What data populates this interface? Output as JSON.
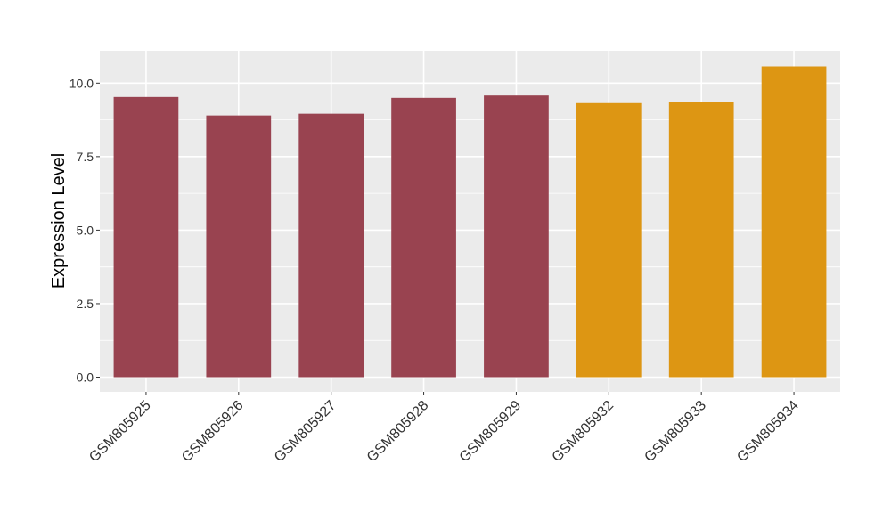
{
  "chart_data": {
    "type": "bar",
    "categories": [
      "GSM805925",
      "GSM805926",
      "GSM805927",
      "GSM805928",
      "GSM805929",
      "GSM805932",
      "GSM805933",
      "GSM805934"
    ],
    "values": [
      9.53,
      8.9,
      8.96,
      9.5,
      9.58,
      9.32,
      9.36,
      10.57
    ],
    "bar_colors": [
      "#994350",
      "#994350",
      "#994350",
      "#994350",
      "#994350",
      "#DD9613",
      "#DD9613",
      "#DD9613"
    ],
    "xlabel": "",
    "ylabel": "Expression Level",
    "ylim": [
      -0.5,
      11.1
    ],
    "yticks": [
      0.0,
      2.5,
      5.0,
      7.5,
      10.0
    ],
    "ytick_labels": [
      "0.0",
      "2.5",
      "5.0",
      "7.5",
      "10.0"
    ],
    "grid": true,
    "panel_color": "#EBEBEB",
    "grid_color": "#FFFFFF"
  }
}
